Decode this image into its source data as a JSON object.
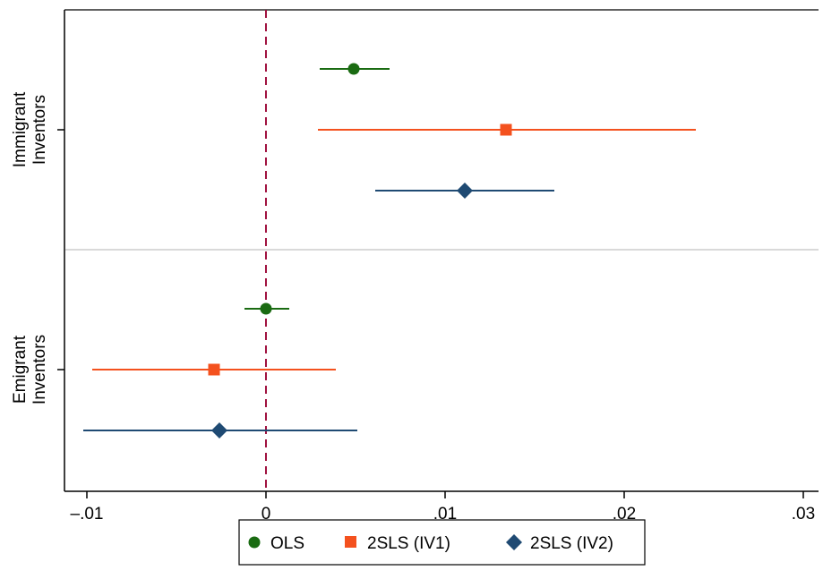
{
  "chart_data": {
    "type": "coefficient-plot",
    "title": "",
    "xlabel": "",
    "ylabel": "",
    "xlim": [
      -0.0105,
      0.0302
    ],
    "x_ticks": [
      -0.01,
      0,
      0.01,
      0.02,
      0.03
    ],
    "x_tick_labels": [
      "–.01",
      "0",
      ".01",
      ".02",
      ".03"
    ],
    "reference_line": {
      "x": 0,
      "style": "dashed",
      "color": "#a0123f"
    },
    "groups": [
      {
        "label_line1": "Immigrant",
        "label_line2": "Inventors"
      },
      {
        "label_line1": "Emigrant",
        "label_line2": "Inventors"
      }
    ],
    "series": [
      {
        "name": "OLS",
        "marker": "circle",
        "color": "#1a6b12",
        "points": [
          {
            "group": 0,
            "estimate": 0.0049,
            "ci_low": 0.003,
            "ci_high": 0.0069
          },
          {
            "group": 1,
            "estimate": 0.0,
            "ci_low": -0.0012,
            "ci_high": 0.0013
          }
        ]
      },
      {
        "name": "2SLS (IV1)",
        "marker": "square",
        "color": "#f4511e",
        "points": [
          {
            "group": 0,
            "estimate": 0.0134,
            "ci_low": 0.0029,
            "ci_high": 0.024
          },
          {
            "group": 1,
            "estimate": -0.0029,
            "ci_low": -0.0097,
            "ci_high": 0.0039
          }
        ]
      },
      {
        "name": "2SLS (IV2)",
        "marker": "diamond",
        "color": "#1f4a73",
        "points": [
          {
            "group": 0,
            "estimate": 0.0111,
            "ci_low": 0.0061,
            "ci_high": 0.0161
          },
          {
            "group": 1,
            "estimate": -0.0026,
            "ci_low": -0.0102,
            "ci_high": 0.0051
          }
        ]
      }
    ],
    "legend": {
      "placement": "bottom"
    },
    "grid": false,
    "colors": {
      "axis": "#000000",
      "group_separator": "#d9d9d9",
      "background": "#ffffff"
    }
  }
}
